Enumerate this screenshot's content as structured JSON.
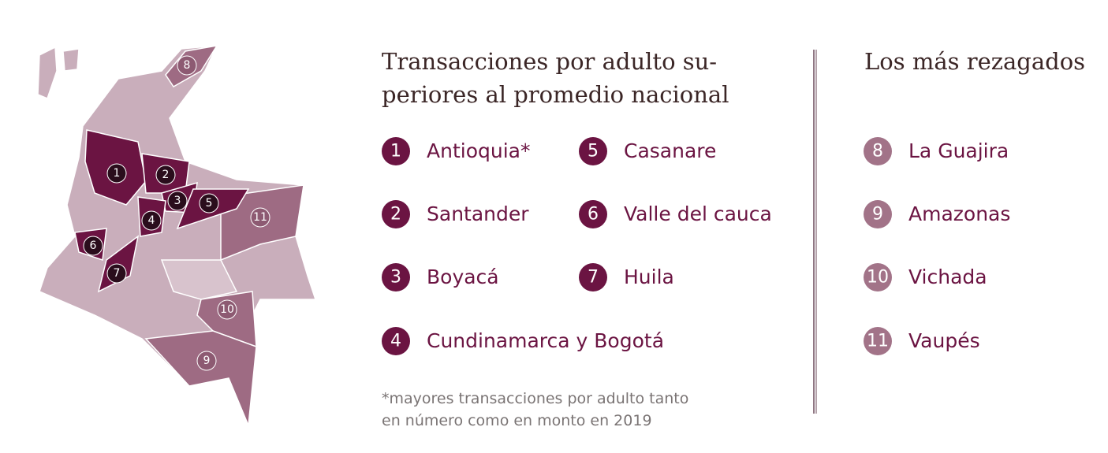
{
  "left": {
    "title_lines": [
      "Transacciones por adulto su-",
      "periores al promedio nacional"
    ],
    "items": [
      {
        "number": 1,
        "label": "Antioquia*"
      },
      {
        "number": 2,
        "label": "Santander"
      },
      {
        "number": 3,
        "label": "Boyacá"
      },
      {
        "number": 4,
        "label": "Cundinamarca y Bogotá"
      },
      {
        "number": 5,
        "label": "Casanare"
      },
      {
        "number": 6,
        "label": "Valle del cauca"
      },
      {
        "number": 7,
        "label": "Huila"
      }
    ],
    "footnote_lines": [
      "*mayores transacciones por adulto tanto",
      "en número como en monto en 2019"
    ]
  },
  "right": {
    "title": "Los más rezagados",
    "items": [
      {
        "number": 8,
        "label": "La Guajira"
      },
      {
        "number": 9,
        "label": "Amazonas"
      },
      {
        "number": 10,
        "label": "Vichada"
      },
      {
        "number": 11,
        "label": "Vaupés"
      }
    ]
  }
}
